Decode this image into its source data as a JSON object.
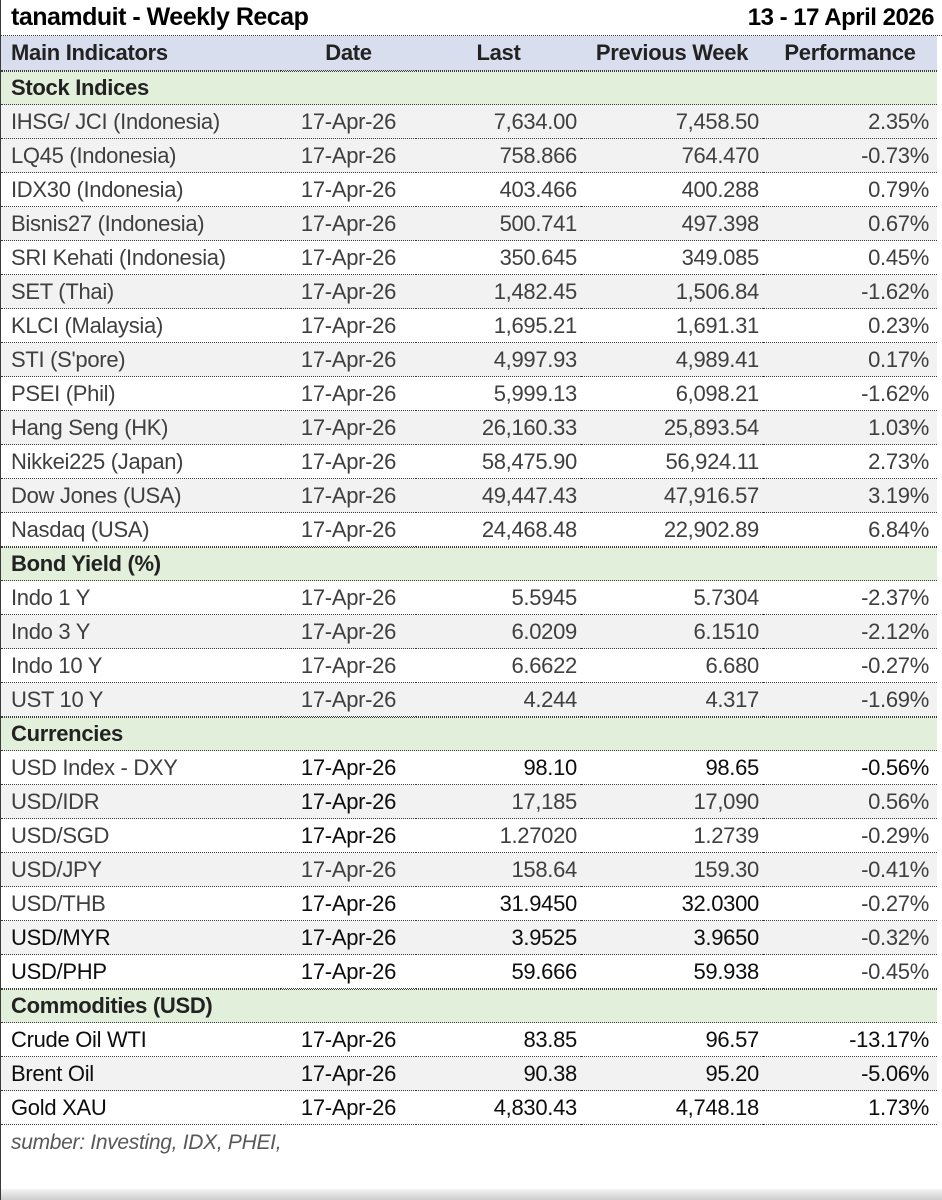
{
  "header": {
    "title": "tanamduit - Weekly Recap",
    "period": "13 - 17 April 2026"
  },
  "columns": [
    "Main Indicators",
    "Date",
    "Last",
    "Previous Week",
    "Performance"
  ],
  "sections": [
    {
      "name": "Stock Indices",
      "rows": [
        {
          "cells": [
            "IHSG/ JCI (Indonesia)",
            "17-Apr-26",
            "7,634.00",
            "7,458.50",
            "2.35%"
          ],
          "stripe": true,
          "dark": []
        },
        {
          "cells": [
            "LQ45 (Indonesia)",
            "17-Apr-26",
            "758.866",
            "764.470",
            "-0.73%"
          ],
          "stripe": true,
          "dark": []
        },
        {
          "cells": [
            "IDX30 (Indonesia)",
            "17-Apr-26",
            "403.466",
            "400.288",
            "0.79%"
          ],
          "stripe": false,
          "dark": []
        },
        {
          "cells": [
            "Bisnis27 (Indonesia)",
            "17-Apr-26",
            "500.741",
            "497.398",
            "0.67%"
          ],
          "stripe": true,
          "dark": []
        },
        {
          "cells": [
            "SRI Kehati (Indonesia)",
            "17-Apr-26",
            "350.645",
            "349.085",
            "0.45%"
          ],
          "stripe": false,
          "dark": []
        },
        {
          "cells": [
            "SET (Thai)",
            "17-Apr-26",
            "1,482.45",
            "1,506.84",
            "-1.62%"
          ],
          "stripe": true,
          "dark": []
        },
        {
          "cells": [
            "KLCI (Malaysia)",
            "17-Apr-26",
            "1,695.21",
            "1,691.31",
            "0.23%"
          ],
          "stripe": false,
          "dark": []
        },
        {
          "cells": [
            "STI (S'pore)",
            "17-Apr-26",
            "4,997.93",
            "4,989.41",
            "0.17%"
          ],
          "stripe": true,
          "dark": []
        },
        {
          "cells": [
            "PSEI (Phil)",
            "17-Apr-26",
            "5,999.13",
            "6,098.21",
            "-1.62%"
          ],
          "stripe": false,
          "dark": []
        },
        {
          "cells": [
            "Hang Seng (HK)",
            "17-Apr-26",
            "26,160.33",
            "25,893.54",
            "1.03%"
          ],
          "stripe": true,
          "dark": []
        },
        {
          "cells": [
            "Nikkei225 (Japan)",
            "17-Apr-26",
            "58,475.90",
            "56,924.11",
            "2.73%"
          ],
          "stripe": false,
          "dark": []
        },
        {
          "cells": [
            "Dow Jones (USA)",
            "17-Apr-26",
            "49,447.43",
            "47,916.57",
            "3.19%"
          ],
          "stripe": true,
          "dark": []
        },
        {
          "cells": [
            "Nasdaq (USA)",
            "17-Apr-26",
            "24,468.48",
            "22,902.89",
            "6.84%"
          ],
          "stripe": false,
          "dark": []
        }
      ]
    },
    {
      "name": "Bond Yield (%)",
      "rows": [
        {
          "cells": [
            "Indo 1 Y",
            "17-Apr-26",
            "5.5945",
            "5.7304",
            "-2.37%"
          ],
          "stripe": false,
          "dark": []
        },
        {
          "cells": [
            "Indo 3 Y",
            "17-Apr-26",
            "6.0209",
            "6.1510",
            "-2.12%"
          ],
          "stripe": true,
          "dark": []
        },
        {
          "cells": [
            "Indo 10 Y",
            "17-Apr-26",
            "6.6622",
            "6.680",
            "-0.27%"
          ],
          "stripe": false,
          "dark": []
        },
        {
          "cells": [
            "UST 10 Y",
            "17-Apr-26",
            "4.244",
            "4.317",
            "-1.69%"
          ],
          "stripe": true,
          "dark": []
        }
      ]
    },
    {
      "name": "Currencies",
      "rows": [
        {
          "cells": [
            "USD Index - DXY",
            "17-Apr-26",
            "98.10",
            "98.65",
            "-0.56%"
          ],
          "stripe": false,
          "dark": [
            1,
            2,
            3,
            4
          ]
        },
        {
          "cells": [
            "USD/IDR",
            "17-Apr-26",
            "17,185",
            "17,090",
            "0.56%"
          ],
          "stripe": true,
          "dark": [
            1
          ]
        },
        {
          "cells": [
            "USD/SGD",
            "17-Apr-26",
            "1.27020",
            "1.2739",
            "-0.29%"
          ],
          "stripe": false,
          "dark": [
            1
          ]
        },
        {
          "cells": [
            "USD/JPY",
            "17-Apr-26",
            "158.64",
            "159.30",
            "-0.41%"
          ],
          "stripe": true,
          "dark": []
        },
        {
          "cells": [
            "USD/THB",
            "17-Apr-26",
            "31.9450",
            "32.0300",
            "-0.27%"
          ],
          "stripe": false,
          "dark": [
            1,
            2,
            3
          ]
        },
        {
          "cells": [
            "USD/MYR",
            "17-Apr-26",
            "3.9525",
            "3.9650",
            "-0.32%"
          ],
          "stripe": true,
          "dark": [
            0,
            1,
            2,
            3
          ]
        },
        {
          "cells": [
            "USD/PHP",
            "17-Apr-26",
            "59.666",
            "59.938",
            "-0.45%"
          ],
          "stripe": false,
          "dark": [
            0,
            1,
            2,
            3
          ]
        }
      ]
    },
    {
      "name": "Commodities (USD)",
      "rows": [
        {
          "cells": [
            "Crude Oil WTI",
            "17-Apr-26",
            "83.85",
            "96.57",
            "-13.17%"
          ],
          "stripe": false,
          "dark": [
            0,
            1,
            2,
            3,
            4
          ]
        },
        {
          "cells": [
            "Brent Oil",
            "17-Apr-26",
            "90.38",
            "95.20",
            "-5.06%"
          ],
          "stripe": true,
          "dark": [
            0,
            1,
            2,
            3,
            4
          ]
        },
        {
          "cells": [
            "Gold XAU",
            "17-Apr-26",
            "4,830.43",
            "4,748.18",
            "1.73%"
          ],
          "stripe": false,
          "dark": [
            0,
            1,
            2,
            3,
            4
          ]
        }
      ]
    }
  ],
  "footer": {
    "source": "sumber: Investing, IDX, PHEI,"
  },
  "colors": {
    "header_bg": "#d8deee",
    "section_bg": "#e2efda",
    "stripe_bg": "#f2f2f2",
    "text": "#3f3f3f",
    "text_dark": "#0d0d0d"
  }
}
